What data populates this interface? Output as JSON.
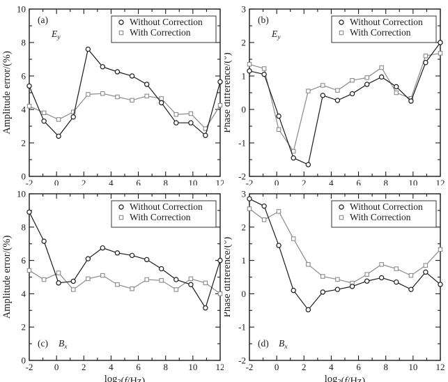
{
  "figure": {
    "background": "#ffffff",
    "axis_color": "#1a1a1a",
    "tick_label_color": "#1a1a1a",
    "series_color_without": "#1a1a1a",
    "series_color_with": "#8a8a8a",
    "legend_border_color": "#333333"
  },
  "legend": {
    "items": [
      {
        "label": "Without Correction",
        "marker": "circle-icon"
      },
      {
        "label": "With Correction",
        "marker": "square-icon"
      }
    ]
  },
  "chart_data": [
    {
      "id": "a",
      "type": "line",
      "panel_letter": "(a)",
      "corner_label_parts": [
        {
          "t": "E",
          "style": "italic"
        },
        {
          "t": "y",
          "style": "sub-italic"
        }
      ],
      "corner_pos": "top-left",
      "ylabel": "Amplitude error/(%)",
      "xlabel_parts": null,
      "xlim": [
        -2,
        12
      ],
      "ylim": [
        0,
        10
      ],
      "x_major_ticks": [
        -2,
        0,
        2,
        4,
        6,
        8,
        10,
        12
      ],
      "x_minor_ticks": [
        -1,
        1,
        3,
        5,
        7,
        9,
        11
      ],
      "y_major_ticks": [
        0,
        2,
        4,
        6,
        8,
        10
      ],
      "y_minor_ticks": [
        1,
        3,
        5,
        7,
        9
      ],
      "grid": false,
      "legend_position": "top-right",
      "x": [
        -2,
        -0.92,
        0.15,
        1.23,
        2.31,
        3.38,
        4.46,
        5.54,
        6.62,
        7.69,
        8.77,
        9.85,
        10.92,
        12
      ],
      "series": [
        {
          "name": "Without Correction",
          "marker": "circle",
          "values": [
            5.4,
            3.3,
            2.4,
            3.55,
            7.6,
            6.55,
            6.25,
            6.0,
            5.5,
            4.4,
            3.2,
            3.2,
            2.45,
            5.65
          ]
        },
        {
          "name": "With Correction",
          "marker": "square",
          "values": [
            4.2,
            3.8,
            3.4,
            3.85,
            4.9,
            4.95,
            4.75,
            4.55,
            4.8,
            4.65,
            3.7,
            3.75,
            2.85,
            4.25
          ]
        }
      ]
    },
    {
      "id": "b",
      "type": "line",
      "panel_letter": "(b)",
      "corner_label_parts": [
        {
          "t": "E",
          "style": "italic"
        },
        {
          "t": "y",
          "style": "sub-italic"
        }
      ],
      "corner_pos": "top-left",
      "ylabel": "Phase difference/(°)",
      "xlabel_parts": null,
      "xlim": [
        -2,
        12
      ],
      "ylim": [
        -2,
        3
      ],
      "x_major_ticks": [
        -2,
        0,
        2,
        4,
        6,
        8,
        10,
        12
      ],
      "x_minor_ticks": [
        -1,
        1,
        3,
        5,
        7,
        9,
        11
      ],
      "y_major_ticks": [
        -2,
        -1,
        0,
        1,
        2,
        3
      ],
      "y_minor_ticks": [
        -1.5,
        -0.5,
        0.5,
        1.5,
        2.5
      ],
      "grid": false,
      "legend_position": "top-right",
      "x": [
        -2,
        -0.92,
        0.15,
        1.23,
        2.31,
        3.38,
        4.46,
        5.54,
        6.62,
        7.69,
        8.77,
        9.85,
        10.92,
        12
      ],
      "series": [
        {
          "name": "Without Correction",
          "marker": "circle",
          "values": [
            1.15,
            1.05,
            -0.2,
            -1.45,
            -1.65,
            0.42,
            0.27,
            0.47,
            0.75,
            0.97,
            0.68,
            0.25,
            1.4,
            2.0
          ]
        },
        {
          "name": "With Correction",
          "marker": "square",
          "values": [
            1.35,
            1.22,
            -0.6,
            -1.25,
            0.55,
            0.72,
            0.57,
            0.87,
            0.95,
            1.25,
            0.5,
            0.33,
            1.6,
            1.68
          ]
        }
      ]
    },
    {
      "id": "c",
      "type": "line",
      "panel_letter": "(c)",
      "corner_label_parts": [
        {
          "t": "B",
          "style": "italic"
        },
        {
          "t": "x",
          "style": "sub-italic"
        }
      ],
      "corner_pos": "bottom-left",
      "ylabel": "Amplitude error/(%)",
      "xlabel_parts": [
        {
          "t": "log"
        },
        {
          "t": "2",
          "style": "sub"
        },
        {
          "t": "("
        },
        {
          "t": "f",
          "style": "italic"
        },
        {
          "t": "/Hz)"
        }
      ],
      "xlim": [
        -2,
        12
      ],
      "ylim": [
        0,
        10
      ],
      "x_major_ticks": [
        -2,
        0,
        2,
        4,
        6,
        8,
        10,
        12
      ],
      "x_minor_ticks": [
        -1,
        1,
        3,
        5,
        7,
        9,
        11
      ],
      "y_major_ticks": [
        0,
        2,
        4,
        6,
        8,
        10
      ],
      "y_minor_ticks": [
        1,
        3,
        5,
        7,
        9
      ],
      "grid": false,
      "legend_position": "top-right",
      "x": [
        -2,
        -0.92,
        0.15,
        1.23,
        2.31,
        3.38,
        4.46,
        5.54,
        6.62,
        7.69,
        8.77,
        9.85,
        10.92,
        12
      ],
      "series": [
        {
          "name": "Without Correction",
          "marker": "circle",
          "values": [
            8.9,
            7.15,
            4.65,
            4.75,
            6.1,
            6.75,
            6.45,
            6.3,
            6.05,
            5.5,
            4.85,
            4.55,
            3.15,
            6.0
          ]
        },
        {
          "name": "With Correction",
          "marker": "square",
          "values": [
            5.4,
            4.85,
            5.25,
            4.25,
            4.9,
            5.1,
            4.55,
            4.3,
            4.85,
            4.8,
            4.25,
            4.9,
            4.65,
            4.0
          ]
        }
      ]
    },
    {
      "id": "d",
      "type": "line",
      "panel_letter": "(d)",
      "corner_label_parts": [
        {
          "t": "B",
          "style": "italic"
        },
        {
          "t": "x",
          "style": "sub-italic"
        }
      ],
      "corner_pos": "bottom-left",
      "ylabel": "Phase difference/(°)",
      "xlabel_parts": [
        {
          "t": "log"
        },
        {
          "t": "2",
          "style": "sub"
        },
        {
          "t": "("
        },
        {
          "t": "f",
          "style": "italic"
        },
        {
          "t": "/Hz)"
        }
      ],
      "xlim": [
        -2,
        12
      ],
      "ylim": [
        -2,
        3
      ],
      "x_major_ticks": [
        -2,
        0,
        2,
        4,
        6,
        8,
        10,
        12
      ],
      "x_minor_ticks": [
        -1,
        1,
        3,
        5,
        7,
        9,
        11
      ],
      "y_major_ticks": [
        -2,
        -1,
        0,
        1,
        2,
        3
      ],
      "y_minor_ticks": [
        -1.5,
        -0.5,
        0.5,
        1.5,
        2.5
      ],
      "grid": false,
      "legend_position": "top-right",
      "x": [
        -2,
        -0.92,
        0.15,
        1.23,
        2.31,
        3.38,
        4.46,
        5.54,
        6.62,
        7.69,
        8.77,
        9.85,
        10.92,
        12
      ],
      "series": [
        {
          "name": "Without Correction",
          "marker": "circle",
          "values": [
            2.85,
            2.63,
            1.45,
            0.1,
            -0.48,
            0.05,
            0.13,
            0.22,
            0.38,
            0.48,
            0.35,
            0.13,
            0.65,
            0.28
          ]
        },
        {
          "name": "With Correction",
          "marker": "square",
          "values": [
            2.55,
            2.22,
            2.47,
            1.65,
            0.88,
            0.52,
            0.43,
            0.32,
            0.58,
            0.88,
            0.75,
            0.55,
            0.85,
            1.33
          ]
        }
      ]
    }
  ]
}
